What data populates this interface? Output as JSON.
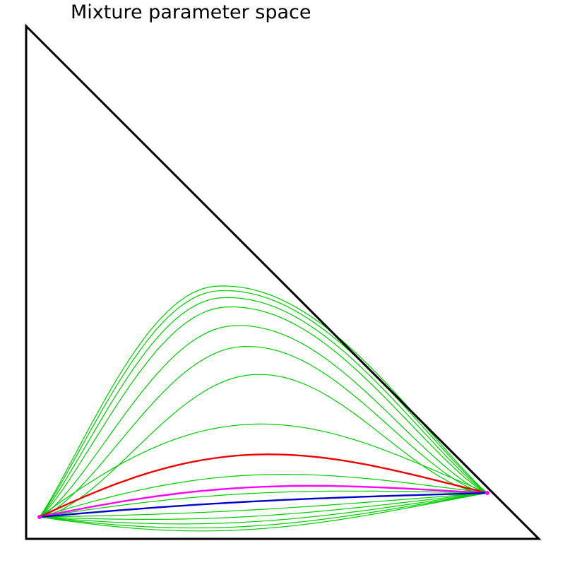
{
  "title": "Mixture parameter space",
  "colors": {
    "background": "#ffffff",
    "triangle": "#000000",
    "green_curves": "#00cc00",
    "red_curve": "#ee0000",
    "magenta_curve": "#ff00ff",
    "blue_curve": "#0000cc"
  },
  "curves": {
    "green_bulge_levels": [
      0.93,
      0.91,
      0.88,
      0.84,
      0.76,
      0.67,
      0.55,
      0.4,
      0.15,
      0.06,
      -0.02,
      -0.05,
      -0.075,
      -0.095,
      -0.11
    ],
    "red_bulge_level": 0.25,
    "magenta_bulge_level": 0.09,
    "blue_bulge_level": 0.02
  }
}
